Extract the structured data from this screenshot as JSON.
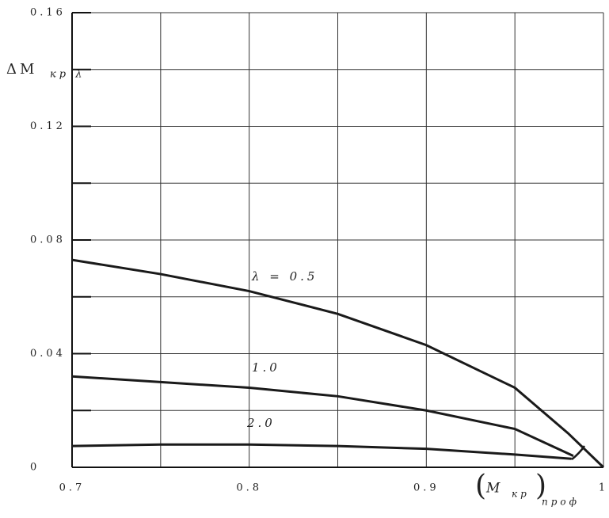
{
  "chart_data": {
    "type": "line",
    "y_label": "ΔM",
    "y_label_sub": "кр λ",
    "x_label": "M",
    "x_label_sub": "кр",
    "x_label_sub2": "проф",
    "xlim": [
      0.7,
      1.0
    ],
    "xticks": [
      0.7,
      0.8,
      0.9,
      1
    ],
    "x_minor_ticks": [
      0.75,
      0.85,
      0.95
    ],
    "ylim": [
      0,
      0.16
    ],
    "yticks": [
      0,
      0.04,
      0.08,
      0.12,
      0.16
    ],
    "y_minor_ticks": [
      0.02,
      0.06,
      0.1,
      0.14
    ],
    "grid": true,
    "series": [
      {
        "name": "λ = 0.5",
        "color": "#1a1a1a",
        "x": [
          0.7,
          0.75,
          0.8,
          0.85,
          0.9,
          0.95,
          0.98,
          1.0
        ],
        "values": [
          0.073,
          0.068,
          0.062,
          0.054,
          0.043,
          0.028,
          0.012,
          0
        ]
      },
      {
        "name": "1.0",
        "color": "#1a1a1a",
        "x": [
          0.7,
          0.75,
          0.8,
          0.85,
          0.9,
          0.95,
          0.983
        ],
        "values": [
          0.032,
          0.03,
          0.028,
          0.025,
          0.02,
          0.0135,
          0.004
        ]
      },
      {
        "name": "2.0",
        "color": "#1a1a1a",
        "x": [
          0.7,
          0.75,
          0.8,
          0.85,
          0.9,
          0.95,
          0.982
        ],
        "values": [
          0.0075,
          0.008,
          0.008,
          0.0075,
          0.0065,
          0.0045,
          0.003
        ]
      }
    ]
  }
}
